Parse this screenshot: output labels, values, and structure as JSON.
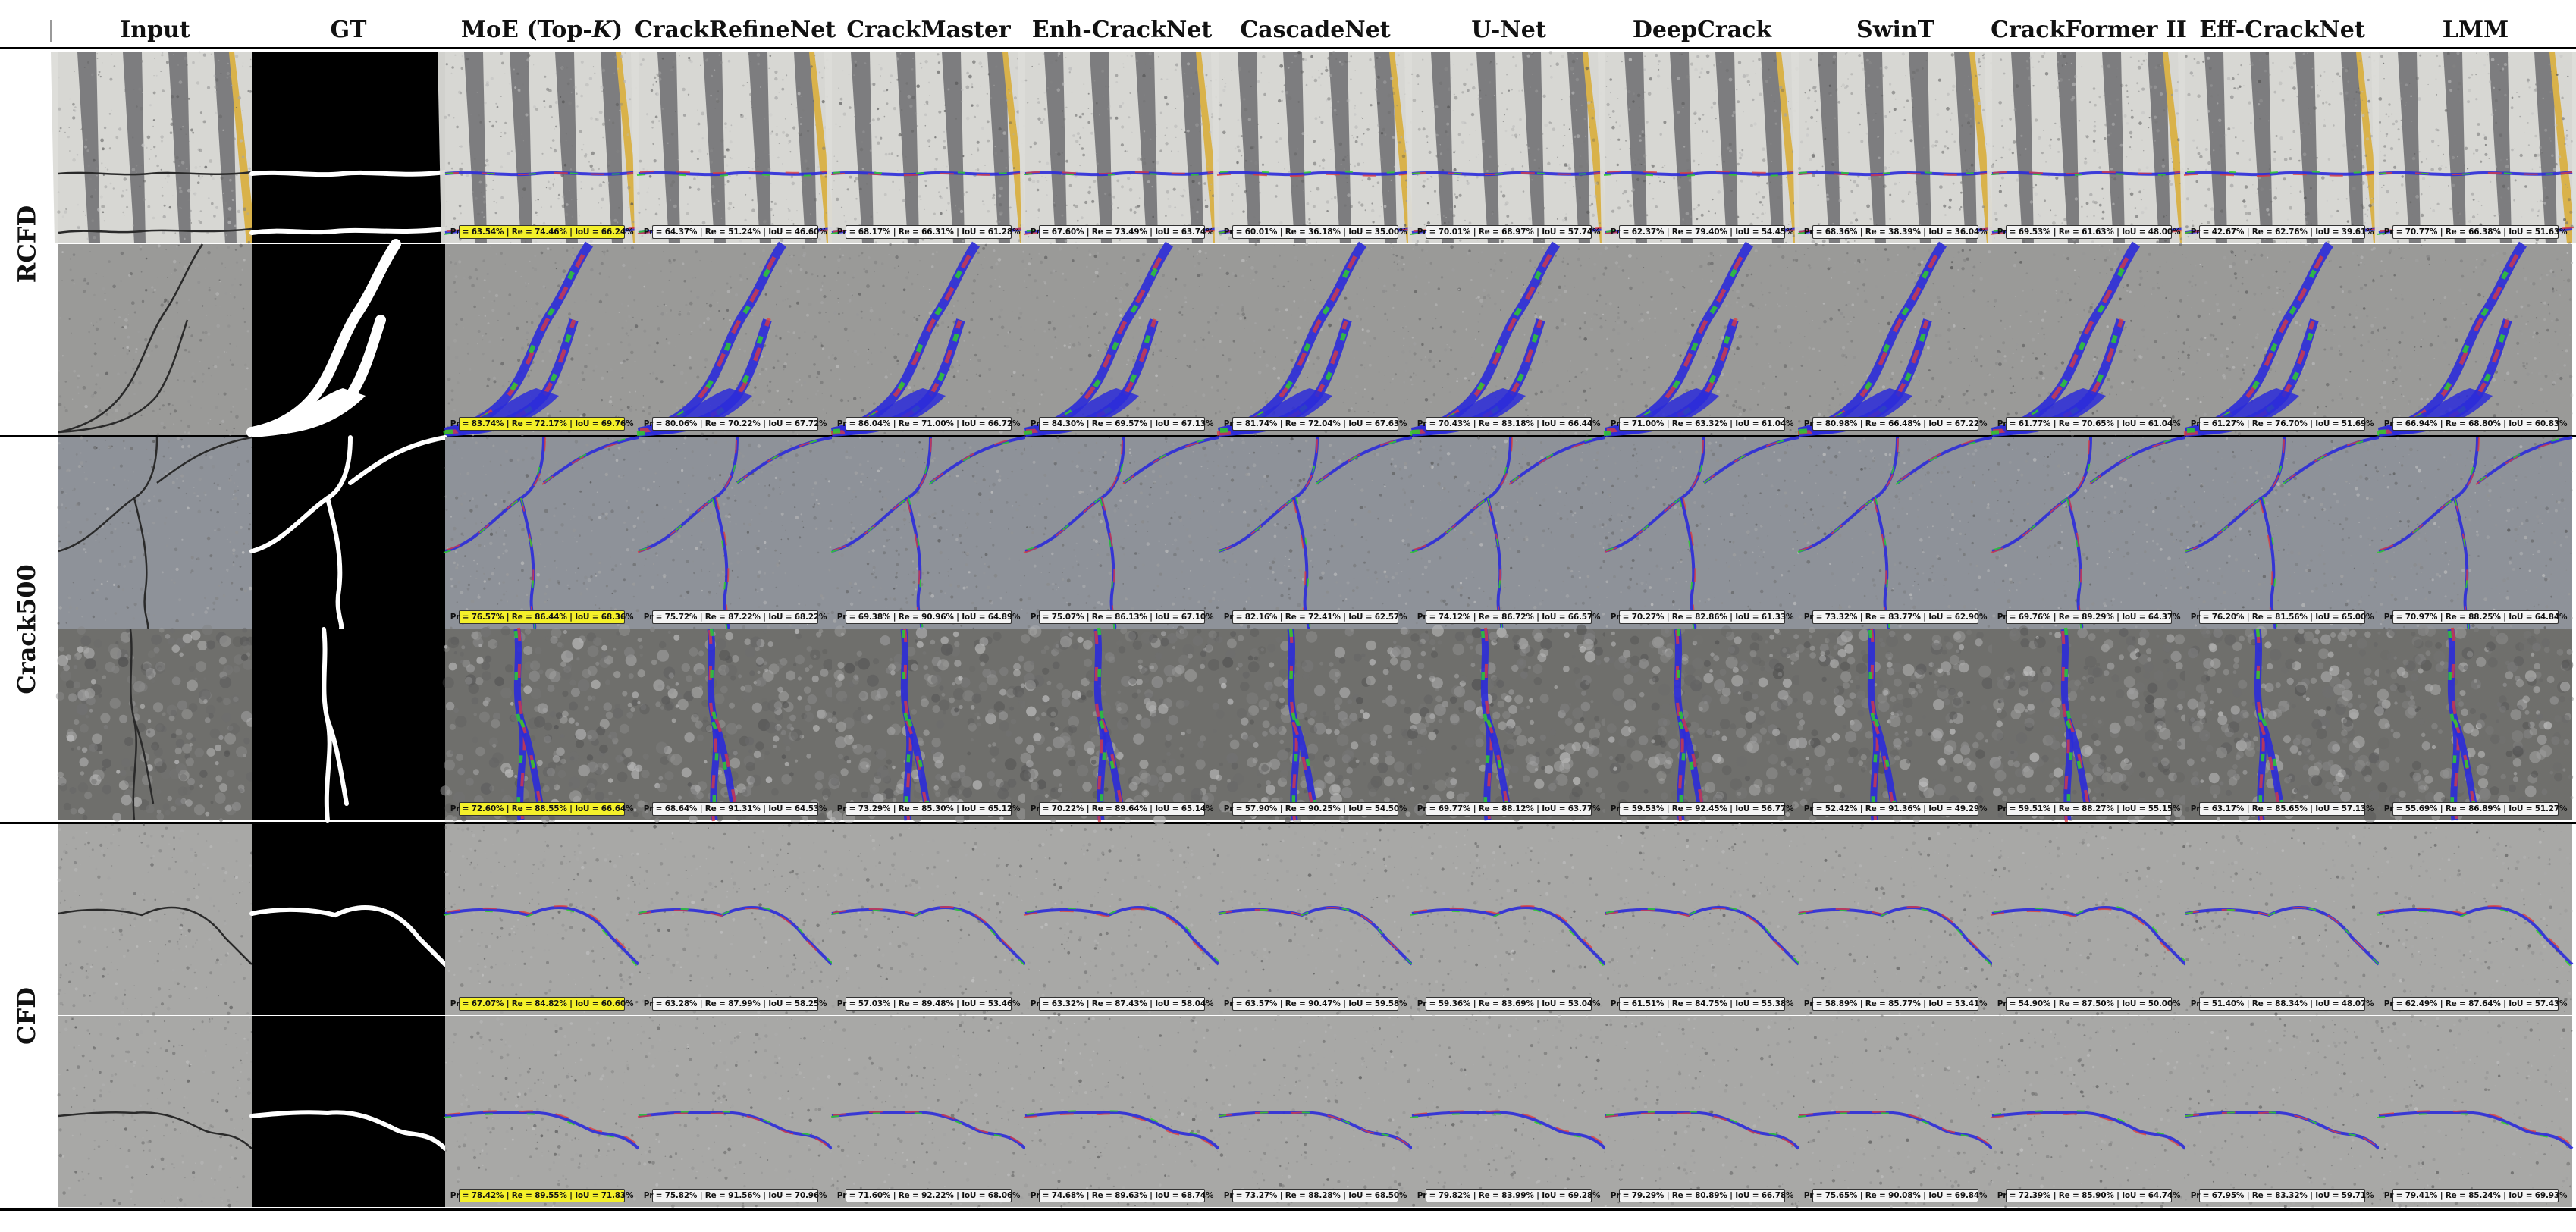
{
  "columns": [
    "Input",
    "GT",
    "MoE (Top-K)",
    "CrackRefineNet",
    "CrackMaster",
    "Enh-CrackNet",
    "CascadeNet",
    "U-Net",
    "DeepCrack",
    "SwinT",
    "CrackFormer II",
    "Eff-CrackNet",
    "LMM"
  ],
  "datasets": [
    {
      "name": "RCFD",
      "rows": [
        {
          "scene": "crosswalk",
          "metrics": [
            "Pr = 63.54% | Re = 74.46% | IoU = 66.24%",
            "Pr = 64.37% | Re = 51.24% | IoU = 46.60%",
            "Pr = 68.17% | Re = 66.31% | IoU = 61.28%",
            "Pr = 67.60% | Re = 73.49% | IoU = 63.74%",
            "Pr = 60.01% | Re = 36.18% | IoU = 35.00%",
            "Pr = 70.01% | Re = 68.97% | IoU = 57.74%",
            "Pr = 62.37% | Re = 79.40% | IoU = 54.45%",
            "Pr = 68.36% | Re = 38.39% | IoU = 36.04%",
            "Pr = 69.53% | Re = 61.63% | IoU = 48.00%",
            "Pr = 42.67% | Re = 62.76% | IoU = 39.61%",
            "Pr = 70.77% | Re = 66.38% | IoU = 51.63%"
          ]
        },
        {
          "scene": "concrete-slab",
          "metrics": [
            "Pr = 83.74% | Re = 72.17% | IoU = 69.76%",
            "Pr = 80.06% | Re = 70.22% | IoU = 67.72%",
            "Pr = 86.04% | Re = 71.00% | IoU = 66.72%",
            "Pr = 84.30% | Re = 69.57% | IoU = 67.13%",
            "Pr = 81.74% | Re = 72.04% | IoU = 67.63%",
            "Pr = 70.43% | Re = 83.18% | IoU = 66.44%",
            "Pr = 71.00% | Re = 63.32% | IoU = 61.04%",
            "Pr = 80.98% | Re = 66.48% | IoU = 67.22%",
            "Pr = 61.77% | Re = 70.65% | IoU = 61.04%",
            "Pr = 61.27% | Re = 76.70% | IoU = 51.69%",
            "Pr = 66.94% | Re = 68.80% | IoU = 60.83%"
          ]
        }
      ]
    },
    {
      "name": "Crack500",
      "rows": [
        {
          "scene": "asphalt",
          "metrics": [
            "Pr = 76.57% | Re = 86.44% | IoU = 68.36%",
            "Pr = 75.72% | Re = 87.22% | IoU = 68.22%",
            "Pr = 69.38% | Re = 90.96% | IoU = 64.89%",
            "Pr = 75.07% | Re = 86.13% | IoU = 67.10%",
            "Pr = 82.16% | Re = 72.41% | IoU = 62.57%",
            "Pr = 74.12% | Re = 86.72% | IoU = 66.57%",
            "Pr = 70.27% | Re = 82.86% | IoU = 61.33%",
            "Pr = 73.32% | Re = 83.77% | IoU = 62.90%",
            "Pr = 69.76% | Re = 89.29% | IoU = 64.37%",
            "Pr = 76.20% | Re = 81.56% | IoU = 65.00%",
            "Pr = 70.97% | Re = 88.25% | IoU = 64.84%"
          ]
        },
        {
          "scene": "gravel",
          "metrics": [
            "Pr = 72.60% | Re = 88.55% | IoU = 66.64%",
            "Pr = 68.64% | Re = 91.31% | IoU = 64.53%",
            "Pr = 73.29% | Re = 85.30% | IoU = 65.12%",
            "Pr = 70.22% | Re = 89.64% | IoU = 65.14%",
            "Pr = 57.90% | Re = 90.25% | IoU = 54.50%",
            "Pr = 69.77% | Re = 88.12% | IoU = 63.77%",
            "Pr = 59.53% | Re = 92.45% | IoU = 56.77%",
            "Pr = 52.42% | Re = 91.36% | IoU = 49.29%",
            "Pr = 59.51% | Re = 88.27% | IoU = 55.15%",
            "Pr = 63.17% | Re = 85.65% | IoU = 57.13%",
            "Pr = 55.69% | Re = 86.89% | IoU = 51.27%"
          ]
        }
      ]
    },
    {
      "name": "CFD",
      "rows": [
        {
          "scene": "pavement",
          "metrics": [
            "Pr = 67.07% | Re = 84.82% | IoU = 60.60%",
            "Pr = 63.28% | Re = 87.99% | IoU = 58.25%",
            "Pr = 57.03% | Re = 89.48% | IoU = 53.46%",
            "Pr = 63.32% | Re = 87.43% | IoU = 58.04%",
            "Pr = 63.57% | Re = 90.47% | IoU = 59.58%",
            "Pr = 59.36% | Re = 83.69% | IoU = 53.04%",
            "Pr = 61.51% | Re = 84.75% | IoU = 55.38%",
            "Pr = 58.89% | Re = 85.77% | IoU = 53.41%",
            "Pr = 54.90% | Re = 87.50% | IoU = 50.00%",
            "Pr = 51.40% | Re = 88.34% | IoU = 48.07%",
            "Pr = 62.49% | Re = 87.64% | IoU = 57.43%"
          ]
        },
        {
          "scene": "pavement",
          "metrics": [
            "Pr = 78.42% | Re = 89.55% | IoU = 71.83%",
            "Pr = 75.82% | Re = 91.56% | IoU = 70.96%",
            "Pr = 71.60% | Re = 92.22% | IoU = 68.06%",
            "Pr = 74.68% | Re = 89.63% | IoU = 68.74%",
            "Pr = 73.27% | Re = 88.28% | IoU = 68.50%",
            "Pr = 79.82% | Re = 83.99% | IoU = 69.28%",
            "Pr = 79.29% | Re = 80.89% | IoU = 66.78%",
            "Pr = 75.65% | Re = 90.08% | IoU = 69.84%",
            "Pr = 72.39% | Re = 85.90% | IoU = 64.74%",
            "Pr = 67.95% | Re = 83.32% | IoU = 59.71%",
            "Pr = 79.41% | Re = 85.24% | IoU = 69.93%"
          ]
        }
      ]
    }
  ],
  "colors": {
    "true_positive": "#2b2bd9",
    "false_positive": "#e23a3a",
    "false_negative": "#2ecc2e",
    "best_highlight": "#f4f02a",
    "gt_background": "#000000",
    "gt_foreground": "#ffffff"
  }
}
